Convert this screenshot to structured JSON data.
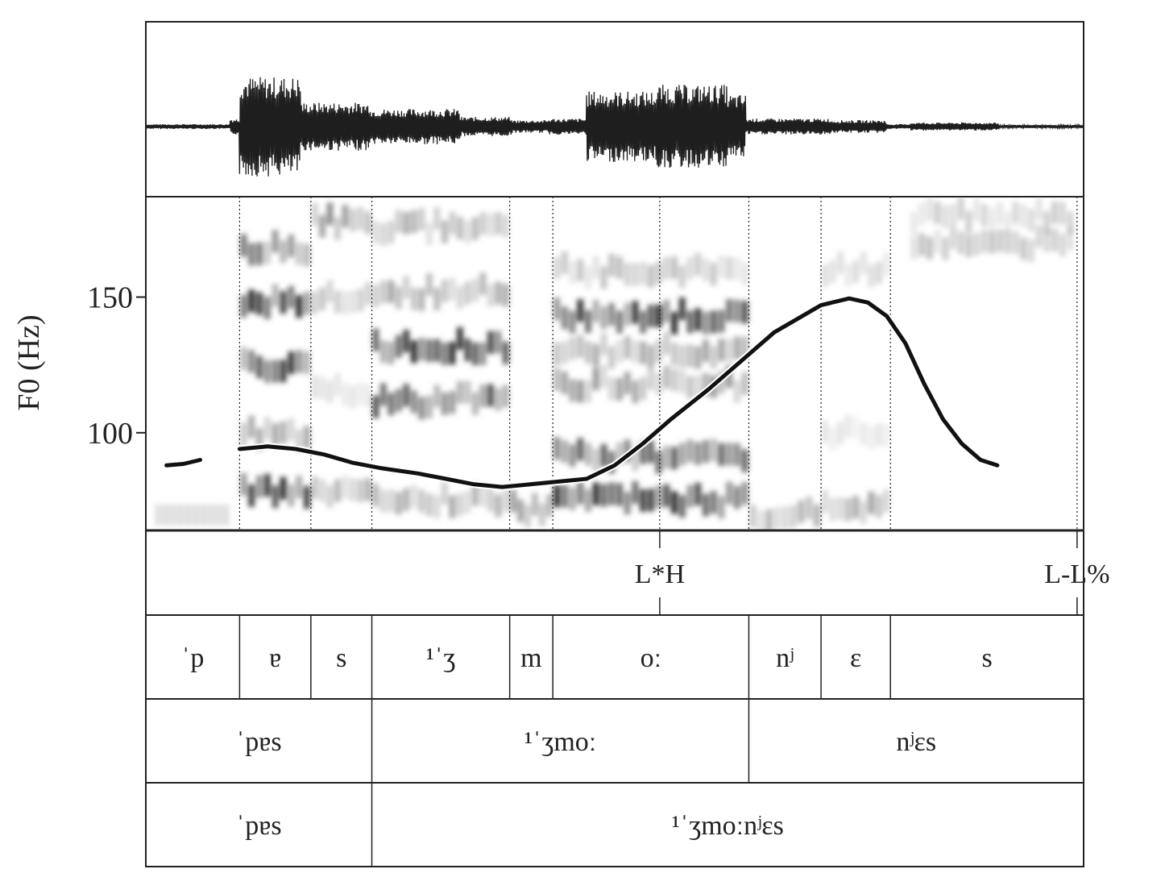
{
  "chart_data": {
    "type": "line",
    "ylabel": "F0 (Hz)",
    "yticks": [
      100,
      150
    ],
    "ylim": [
      64,
      187
    ],
    "xlim": [
      0,
      1
    ],
    "f0_segments": [
      [
        [
          0.022,
          88
        ],
        [
          0.04,
          88.5
        ],
        [
          0.058,
          90
        ]
      ],
      [
        [
          0.1,
          94
        ],
        [
          0.13,
          95
        ],
        [
          0.16,
          94
        ],
        [
          0.19,
          92
        ],
        [
          0.22,
          89
        ],
        [
          0.25,
          87
        ],
        [
          0.29,
          85
        ],
        [
          0.32,
          83
        ],
        [
          0.35,
          81
        ],
        [
          0.38,
          80
        ],
        [
          0.41,
          81
        ],
        [
          0.44,
          82
        ],
        [
          0.47,
          83
        ],
        [
          0.5,
          88
        ],
        [
          0.53,
          96
        ],
        [
          0.56,
          105
        ],
        [
          0.6,
          116
        ],
        [
          0.64,
          128
        ],
        [
          0.67,
          137
        ],
        [
          0.7,
          143
        ],
        [
          0.72,
          147
        ],
        [
          0.75,
          149.5
        ],
        [
          0.77,
          148
        ],
        [
          0.79,
          143
        ],
        [
          0.81,
          133
        ],
        [
          0.83,
          118
        ],
        [
          0.85,
          105
        ],
        [
          0.87,
          96
        ],
        [
          0.89,
          90
        ],
        [
          0.908,
          88
        ]
      ]
    ],
    "boundaries": [
      0.1,
      0.176,
      0.241,
      0.388,
      0.434,
      0.548,
      0.643,
      0.72,
      0.794,
      0.993
    ],
    "tone_tier": [
      {
        "label": "L*H",
        "x": 0.548
      },
      {
        "label": "L-L%",
        "x": 0.993
      }
    ],
    "phone_tier": [
      "ˈp",
      "ɐ",
      "s",
      "¹ˈʒ",
      "m",
      "oː",
      "nʲ",
      "ɛ",
      "s"
    ],
    "phone_edges": [
      0,
      0.1,
      0.176,
      0.241,
      0.388,
      0.434,
      0.643,
      0.72,
      0.794,
      1
    ],
    "syllable_tier": [
      "ˈpɐs",
      "¹ˈʒmoː",
      "nʲɛs"
    ],
    "syllable_edges": [
      0,
      0.241,
      0.643,
      1
    ],
    "word_tier": [
      "ˈpɐs",
      "¹ˈʒmoːnʲɛs"
    ],
    "word_edges": [
      0,
      0.241,
      1
    ]
  }
}
